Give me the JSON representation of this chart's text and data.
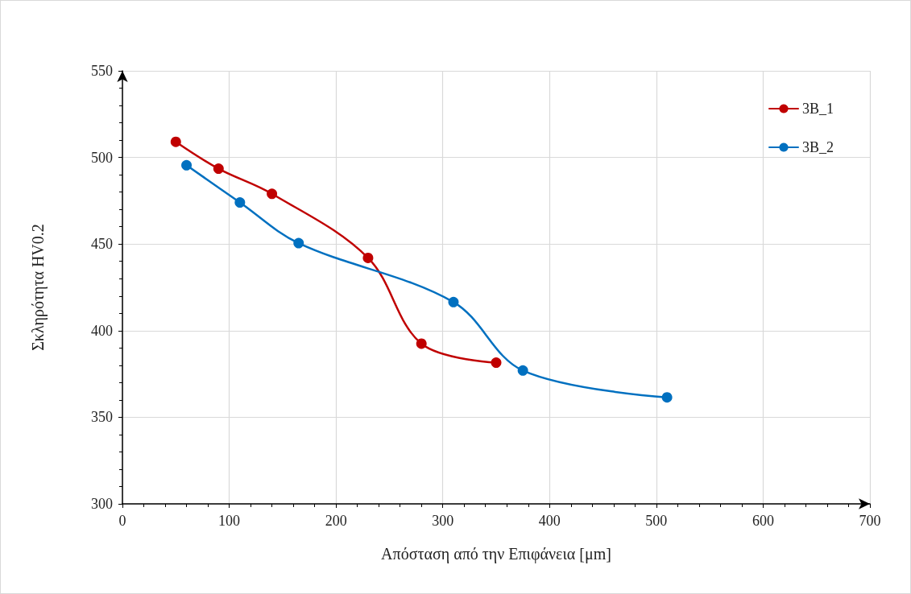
{
  "chart_data": {
    "type": "line",
    "xlabel": "Απόσταση από την Επιφάνεια [μm]",
    "ylabel": "Σκληρότητα HV0.2",
    "xlim": [
      0,
      700
    ],
    "xticks": [
      0,
      100,
      200,
      300,
      400,
      500,
      600,
      700
    ],
    "ylim": [
      300,
      550
    ],
    "yticks": [
      300,
      350,
      400,
      450,
      500,
      550
    ],
    "grid": true,
    "legend": "top right",
    "marker": "circle",
    "line_style": "solid",
    "series": [
      {
        "name": "3B_1",
        "color": "#c00000",
        "x": [
          50,
          90,
          140,
          230,
          280,
          350
        ],
        "values": [
          509,
          493.5,
          479,
          442,
          392.5,
          381.5
        ]
      },
      {
        "name": "3B_2",
        "color": "#0070c0",
        "x": [
          60,
          110,
          165,
          310,
          375,
          510
        ],
        "values": [
          495.5,
          474,
          450.5,
          416.5,
          377,
          361.5
        ]
      }
    ]
  }
}
